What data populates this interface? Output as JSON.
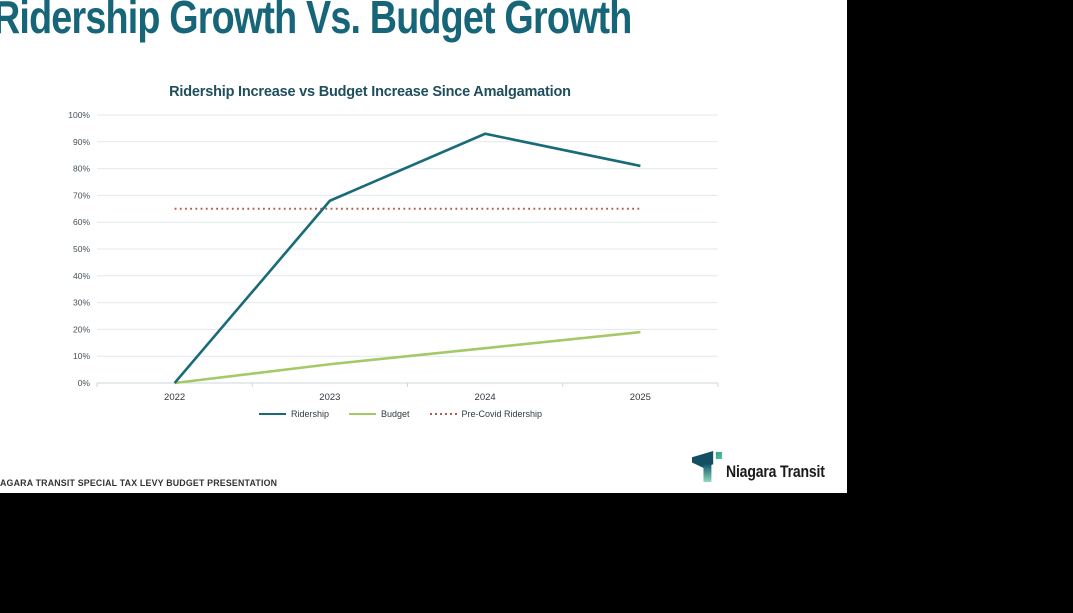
{
  "header": {
    "title": "Ridership Growth Vs. Budget Growth"
  },
  "chart_data": {
    "type": "line",
    "title": "Ridership Increase vs Budget Increase Since Amalgamation",
    "categories": [
      "2022",
      "2023",
      "2024",
      "2025"
    ],
    "series": [
      {
        "name": "Ridership",
        "values": [
          0,
          68,
          93,
          81
        ],
        "color": "#196b7a",
        "style": "solid"
      },
      {
        "name": "Budget",
        "values": [
          0,
          7,
          13,
          19
        ],
        "color": "#a4ca68",
        "style": "solid"
      },
      {
        "name": "Pre-Covid Ridership",
        "values": [
          65,
          65,
          65,
          65
        ],
        "color": "#b25c4d",
        "style": "dotted"
      }
    ],
    "y_axis": {
      "min": 0,
      "max": 100,
      "step": 10,
      "tick_format": "percent"
    },
    "x_axis": {
      "label": ""
    },
    "grid": true,
    "legend_position": "bottom"
  },
  "footer": {
    "text": "AGARA TRANSIT SPECIAL TAX LEVY BUDGET PRESENTATION"
  },
  "logo": {
    "text": "Niagara Transit"
  },
  "colors": {
    "slide_title": "#166579",
    "chart_title": "#1f4e5c",
    "gridline": "#e0eaee",
    "axis_line": "#cdd9de",
    "tick_label": "#42505a",
    "slide_background": "#ffffff",
    "canvas_background": "#000000"
  }
}
